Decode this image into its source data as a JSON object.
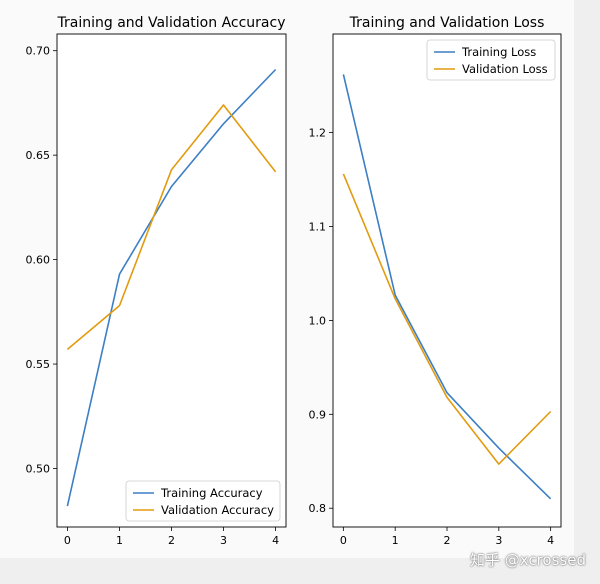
{
  "watermark": "知乎 @xcrossed",
  "colors": {
    "training": "#3c7fc4",
    "validation": "#e29b0f",
    "panel_bg": "#fafafa"
  },
  "chart_data": [
    {
      "type": "line",
      "title": "Training and Validation Accuracy",
      "xlabel": "",
      "ylabel": "",
      "x": [
        0,
        1,
        2,
        3,
        4
      ],
      "xlim": [
        -0.2,
        4.2
      ],
      "ylim": [
        0.472,
        0.708
      ],
      "xticks": [
        0,
        1,
        2,
        3,
        4
      ],
      "yticks": [
        0.5,
        0.55,
        0.6,
        0.65,
        0.7
      ],
      "ytick_labels": [
        "0.50",
        "0.55",
        "0.60",
        "0.65",
        "0.70"
      ],
      "legend_loc": "lower right",
      "series": [
        {
          "name": "Training Accuracy",
          "color_key": "training",
          "values": [
            0.482,
            0.593,
            0.635,
            0.665,
            0.691
          ]
        },
        {
          "name": "Validation Accuracy",
          "color_key": "validation",
          "values": [
            0.557,
            0.578,
            0.643,
            0.674,
            0.642
          ]
        }
      ]
    },
    {
      "type": "line",
      "title": "Training and Validation Loss",
      "xlabel": "",
      "ylabel": "",
      "x": [
        0,
        1,
        2,
        3,
        4
      ],
      "xlim": [
        -0.2,
        4.2
      ],
      "ylim": [
        0.78,
        1.305
      ],
      "xticks": [
        0,
        1,
        2,
        3,
        4
      ],
      "yticks": [
        0.8,
        0.9,
        1.0,
        1.1,
        1.2
      ],
      "ytick_labels": [
        "0.8",
        "0.9",
        "1.0",
        "1.1",
        "1.2"
      ],
      "legend_loc": "upper right",
      "series": [
        {
          "name": "Training Loss",
          "color_key": "training",
          "values": [
            1.262,
            1.027,
            0.923,
            0.864,
            0.81
          ]
        },
        {
          "name": "Validation Loss",
          "color_key": "validation",
          "values": [
            1.156,
            1.023,
            0.918,
            0.847,
            0.903
          ]
        }
      ]
    }
  ]
}
